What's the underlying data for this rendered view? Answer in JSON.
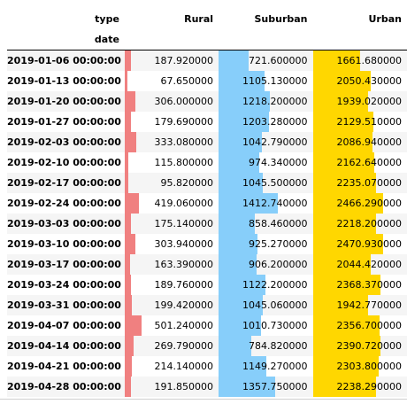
{
  "header": {
    "columns_label": "type",
    "index_label": "date",
    "columns": [
      "Rural",
      "Suburban",
      "Urban"
    ]
  },
  "colors": {
    "Rural": "#f08080",
    "Suburban": "#87cefa",
    "Urban": "#ffd700"
  },
  "table": {
    "columns": [
      "Rural",
      "Suburban",
      "Urban"
    ],
    "rows": [
      {
        "date": "2019-01-06 00:00:00",
        "values": [
          "187.920000",
          "721.600000",
          "1661.680000"
        ]
      },
      {
        "date": "2019-01-13 00:00:00",
        "values": [
          "67.650000",
          "1105.130000",
          "2050.430000"
        ]
      },
      {
        "date": "2019-01-20 00:00:00",
        "values": [
          "306.000000",
          "1218.200000",
          "1939.020000"
        ]
      },
      {
        "date": "2019-01-27 00:00:00",
        "values": [
          "179.690000",
          "1203.280000",
          "2129.510000"
        ]
      },
      {
        "date": "2019-02-03 00:00:00",
        "values": [
          "333.080000",
          "1042.790000",
          "2086.940000"
        ]
      },
      {
        "date": "2019-02-10 00:00:00",
        "values": [
          "115.800000",
          "974.340000",
          "2162.640000"
        ]
      },
      {
        "date": "2019-02-17 00:00:00",
        "values": [
          "95.820000",
          "1045.500000",
          "2235.070000"
        ]
      },
      {
        "date": "2019-02-24 00:00:00",
        "values": [
          "419.060000",
          "1412.740000",
          "2466.290000"
        ]
      },
      {
        "date": "2019-03-03 00:00:00",
        "values": [
          "175.140000",
          "858.460000",
          "2218.200000"
        ]
      },
      {
        "date": "2019-03-10 00:00:00",
        "values": [
          "303.940000",
          "925.270000",
          "2470.930000"
        ]
      },
      {
        "date": "2019-03-17 00:00:00",
        "values": [
          "163.390000",
          "906.200000",
          "2044.420000"
        ]
      },
      {
        "date": "2019-03-24 00:00:00",
        "values": [
          "189.760000",
          "1122.200000",
          "2368.370000"
        ]
      },
      {
        "date": "2019-03-31 00:00:00",
        "values": [
          "199.420000",
          "1045.060000",
          "1942.770000"
        ]
      },
      {
        "date": "2019-04-07 00:00:00",
        "values": [
          "501.240000",
          "1010.730000",
          "2356.700000"
        ]
      },
      {
        "date": "2019-04-14 00:00:00",
        "values": [
          "269.790000",
          "784.820000",
          "2390.720000"
        ]
      },
      {
        "date": "2019-04-21 00:00:00",
        "values": [
          "214.140000",
          "1149.270000",
          "2303.800000"
        ]
      },
      {
        "date": "2019-04-28 00:00:00",
        "values": [
          "191.850000",
          "1357.750000",
          "2238.290000"
        ]
      }
    ]
  }
}
